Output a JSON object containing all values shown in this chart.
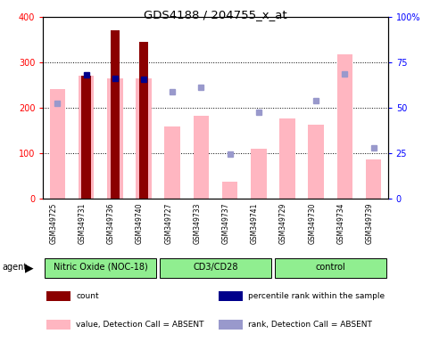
{
  "title": "GDS4188 / 204755_x_at",
  "samples": [
    "GSM349725",
    "GSM349731",
    "GSM349736",
    "GSM349740",
    "GSM349727",
    "GSM349733",
    "GSM349737",
    "GSM349741",
    "GSM349729",
    "GSM349730",
    "GSM349734",
    "GSM349739"
  ],
  "absent_bars": [
    242,
    270,
    265,
    265,
    158,
    182,
    36,
    110,
    177,
    162,
    318,
    85
  ],
  "absent_ranks": [
    210,
    null,
    null,
    null,
    236,
    246,
    98,
    190,
    null,
    216,
    275,
    112
  ],
  "present_bars": [
    null,
    270,
    370,
    345,
    null,
    null,
    null,
    null,
    null,
    null,
    null,
    null
  ],
  "present_ranks": [
    null,
    272,
    265,
    262,
    null,
    null,
    null,
    null,
    null,
    null,
    null,
    null
  ],
  "ylim_left": [
    0,
    400
  ],
  "ylim_right": [
    0,
    100
  ],
  "yticks_left": [
    0,
    100,
    200,
    300,
    400
  ],
  "yticks_right": [
    0,
    25,
    50,
    75,
    100
  ],
  "ytick_labels_right": [
    "0",
    "25",
    "50",
    "75",
    "100%"
  ],
  "absent_bar_color": "#FFB6C1",
  "present_bar_color": "#8B0000",
  "present_rank_color": "#00008B",
  "absent_rank_color": "#9999CC",
  "plot_bg": "#FFFFFF",
  "label_bg": "#C8C8C8",
  "group_bg": "#90EE90",
  "groups": [
    {
      "name": "Nitric Oxide (NOC-18)",
      "start": 0,
      "end": 3
    },
    {
      "name": "CD3/CD28",
      "start": 4,
      "end": 7
    },
    {
      "name": "control",
      "start": 8,
      "end": 11
    }
  ],
  "legend_items": [
    {
      "color": "#8B0000",
      "label": "count"
    },
    {
      "color": "#00008B",
      "label": "percentile rank within the sample"
    },
    {
      "color": "#FFB6C1",
      "label": "value, Detection Call = ABSENT"
    },
    {
      "color": "#9999CC",
      "label": "rank, Detection Call = ABSENT"
    }
  ]
}
